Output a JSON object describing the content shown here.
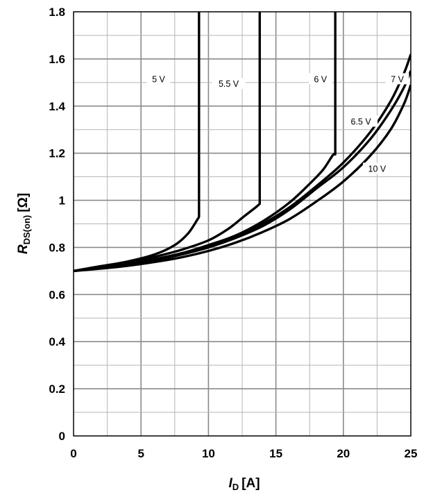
{
  "chart_data": {
    "type": "line",
    "xlabel": {
      "main": "I",
      "sub": "D",
      "unit": "[A]"
    },
    "ylabel": {
      "main": "R",
      "sub": "DS(on)",
      "unit": "[Ω]"
    },
    "xlim": [
      0,
      25
    ],
    "ylim": [
      0,
      1.8
    ],
    "x_ticks": [
      "0",
      "5",
      "10",
      "15",
      "20",
      "25"
    ],
    "y_ticks": [
      "0",
      "0.2",
      "0.4",
      "0.6",
      "0.8",
      "1",
      "1.2",
      "1.4",
      "1.6",
      "1.8"
    ],
    "grid": true,
    "series": [
      {
        "name": "5 V",
        "points": [
          [
            0,
            0.7
          ],
          [
            2,
            0.72
          ],
          [
            4,
            0.74
          ],
          [
            6,
            0.77
          ],
          [
            7.5,
            0.81
          ],
          [
            8.5,
            0.86
          ],
          [
            9.2,
            0.92
          ],
          [
            9.3,
            0.93
          ],
          [
            9.3,
            1.8
          ]
        ]
      },
      {
        "name": "5.5 V",
        "points": [
          [
            0,
            0.7
          ],
          [
            2,
            0.72
          ],
          [
            4,
            0.735
          ],
          [
            6,
            0.76
          ],
          [
            8,
            0.79
          ],
          [
            10,
            0.83
          ],
          [
            11.5,
            0.88
          ],
          [
            12.6,
            0.93
          ],
          [
            13.5,
            0.97
          ],
          [
            13.8,
            0.985
          ],
          [
            13.8,
            1.8
          ]
        ]
      },
      {
        "name": "6 V",
        "points": [
          [
            0,
            0.7
          ],
          [
            2,
            0.715
          ],
          [
            4,
            0.73
          ],
          [
            6,
            0.75
          ],
          [
            8,
            0.775
          ],
          [
            10,
            0.81
          ],
          [
            12,
            0.85
          ],
          [
            14,
            0.91
          ],
          [
            16,
            0.99
          ],
          [
            17.5,
            1.07
          ],
          [
            18.5,
            1.13
          ],
          [
            19.2,
            1.19
          ],
          [
            19.4,
            1.195
          ],
          [
            19.4,
            1.8
          ]
        ]
      },
      {
        "name": "6.5 V",
        "points": [
          [
            0,
            0.7
          ],
          [
            2,
            0.712
          ],
          [
            4,
            0.727
          ],
          [
            6,
            0.745
          ],
          [
            8,
            0.77
          ],
          [
            10,
            0.8
          ],
          [
            12,
            0.84
          ],
          [
            14,
            0.89
          ],
          [
            16,
            0.96
          ],
          [
            18,
            1.05
          ],
          [
            20,
            1.14
          ],
          [
            22,
            1.26
          ],
          [
            23.5,
            1.38
          ],
          [
            24.5,
            1.48
          ],
          [
            25,
            1.55
          ]
        ]
      },
      {
        "name": "7 V",
        "points": [
          [
            0,
            0.7
          ],
          [
            2,
            0.714
          ],
          [
            4,
            0.73
          ],
          [
            6,
            0.75
          ],
          [
            8,
            0.775
          ],
          [
            10,
            0.807
          ],
          [
            12,
            0.85
          ],
          [
            14,
            0.9
          ],
          [
            16,
            0.97
          ],
          [
            18,
            1.06
          ],
          [
            20,
            1.16
          ],
          [
            22,
            1.29
          ],
          [
            23.5,
            1.42
          ],
          [
            24.5,
            1.54
          ],
          [
            25,
            1.62
          ]
        ]
      },
      {
        "name": "10 V",
        "points": [
          [
            0,
            0.7
          ],
          [
            2,
            0.71
          ],
          [
            4,
            0.722
          ],
          [
            6,
            0.738
          ],
          [
            8,
            0.758
          ],
          [
            10,
            0.785
          ],
          [
            12,
            0.82
          ],
          [
            14,
            0.865
          ],
          [
            16,
            0.92
          ],
          [
            18,
            0.995
          ],
          [
            20,
            1.08
          ],
          [
            22,
            1.19
          ],
          [
            23.5,
            1.3
          ],
          [
            24.5,
            1.41
          ],
          [
            25,
            1.49
          ]
        ]
      }
    ]
  }
}
